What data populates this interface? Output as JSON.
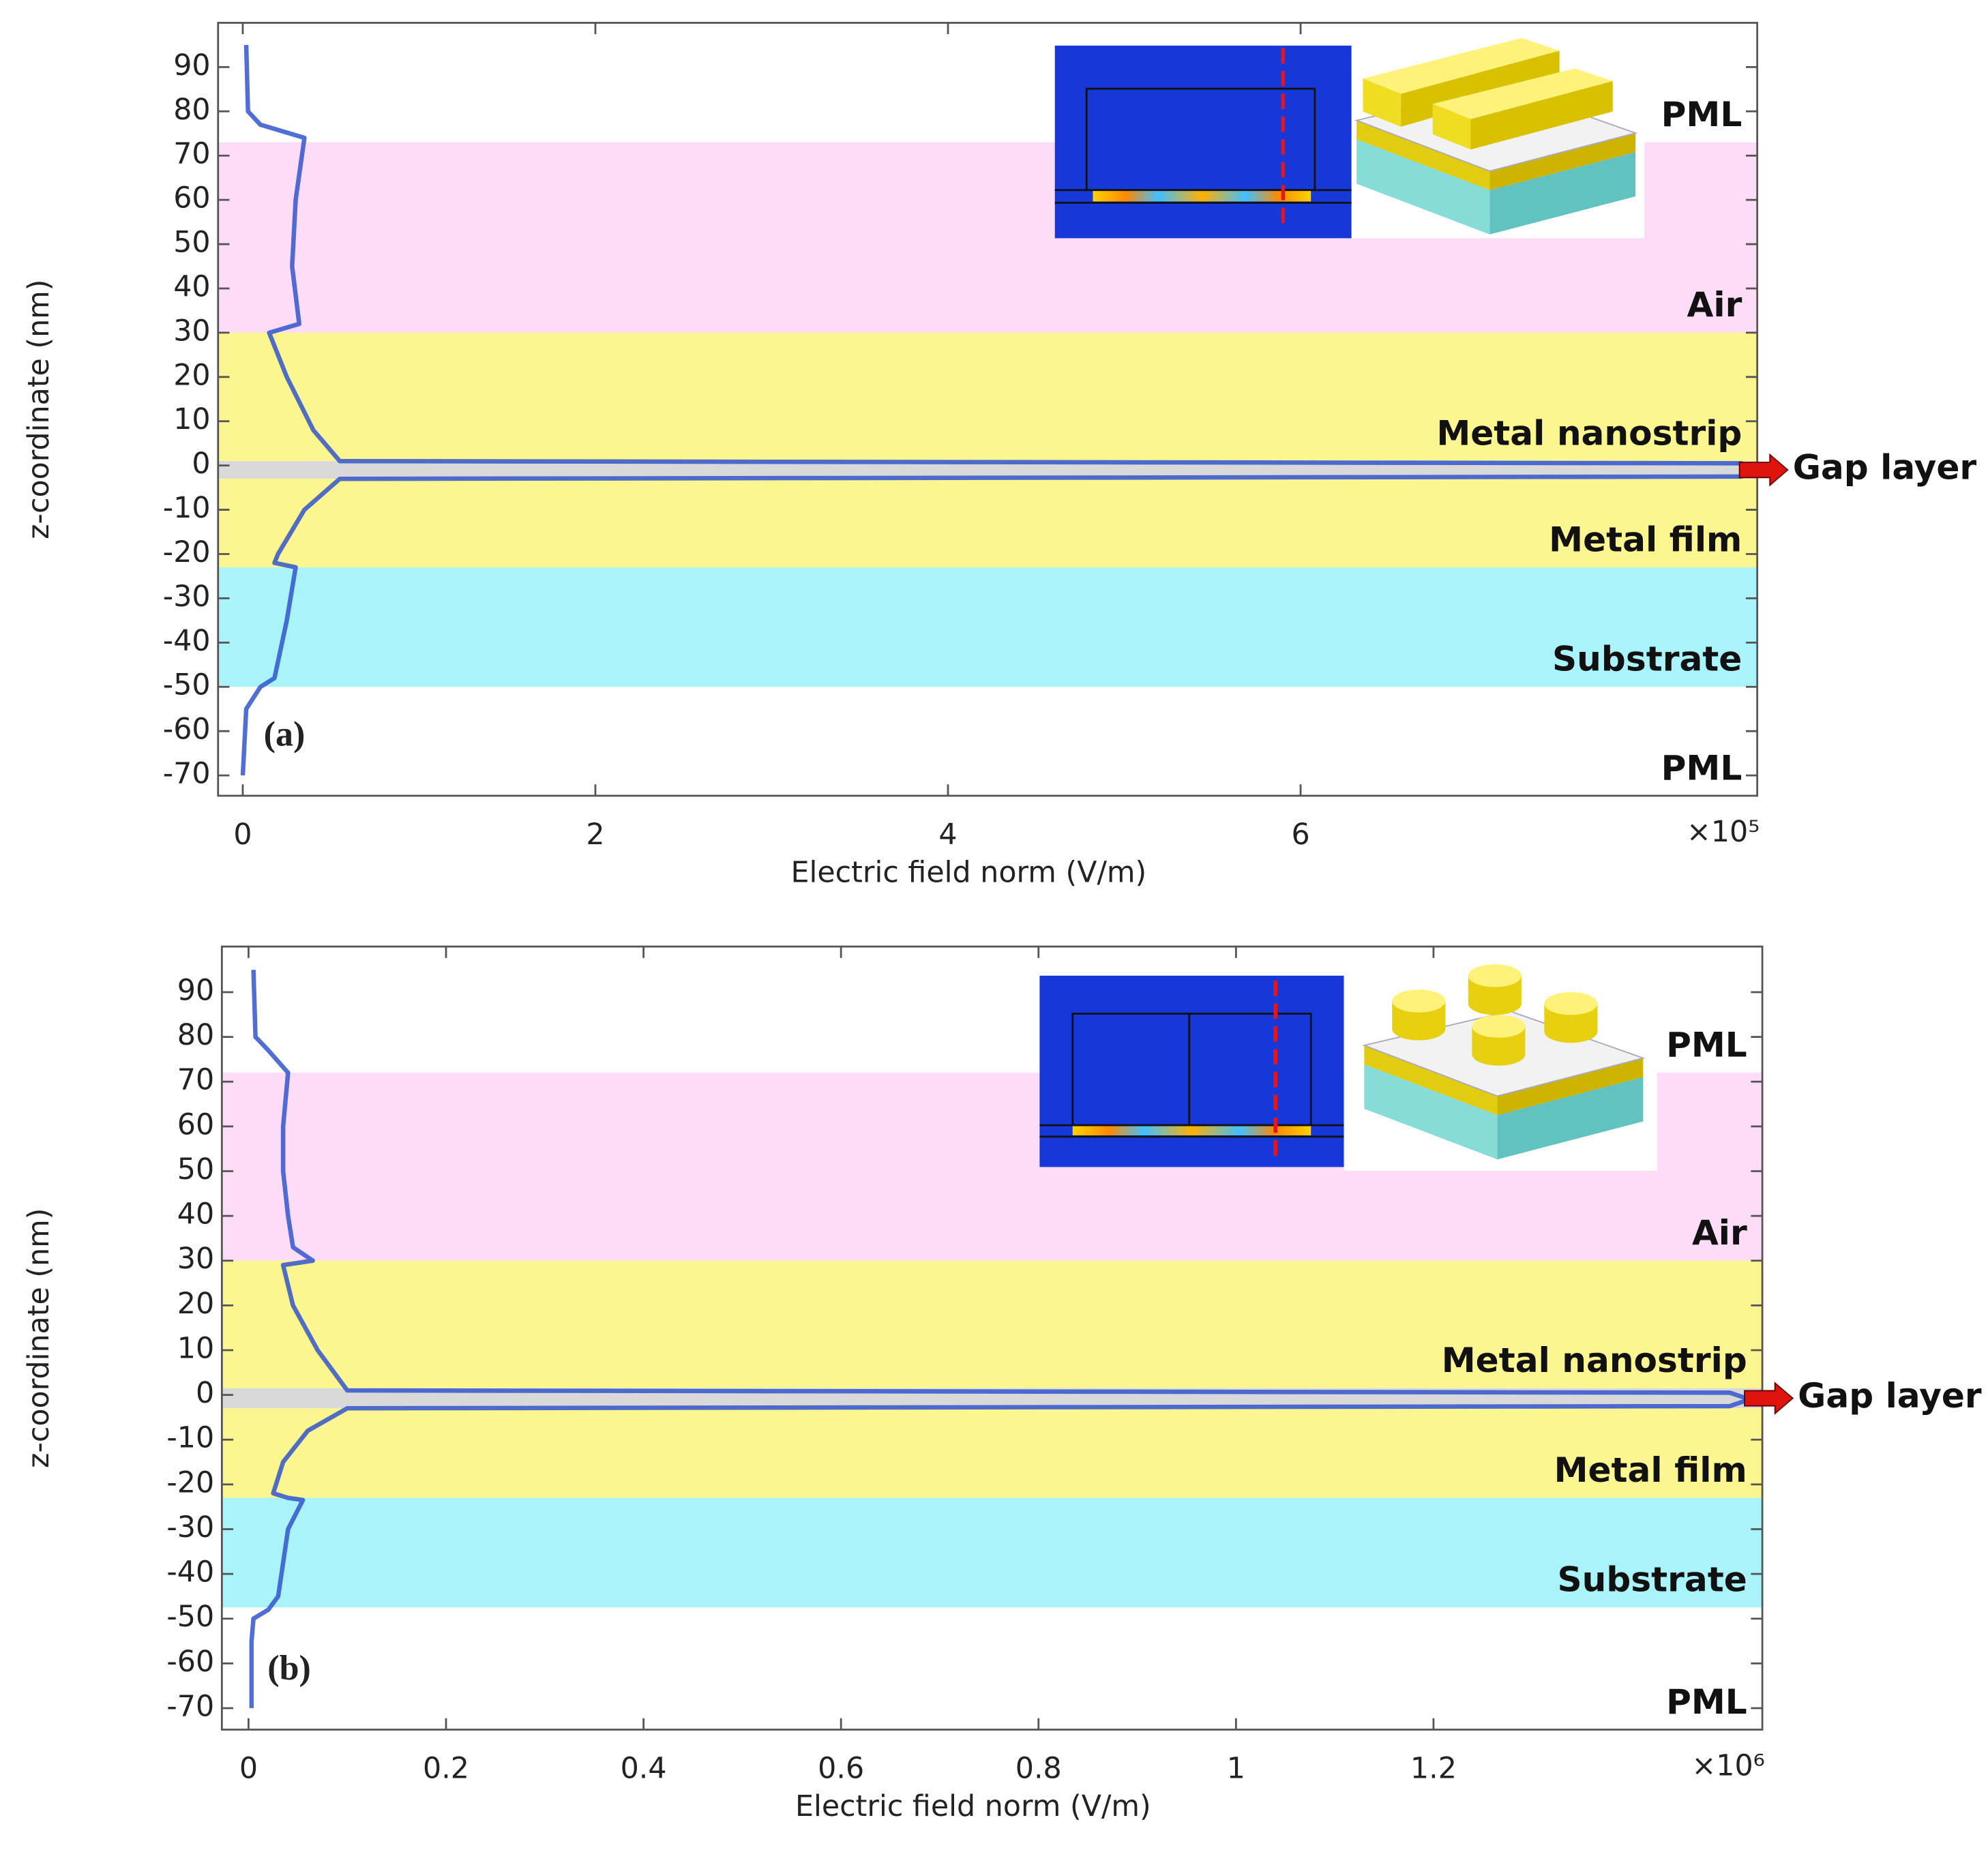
{
  "chart_data": [
    {
      "type": "line",
      "panel_label": "(a)",
      "x_label": "Electric field norm (V/m)",
      "y_label": "z-coordinate (nm)",
      "x_multiplier": "×10⁵",
      "color": "#3355cc",
      "x": [
        0.02,
        0.03,
        0.1,
        0.35,
        0.3,
        0.28,
        0.32,
        0.15,
        0.25,
        0.4,
        0.55,
        8.5,
        8.55,
        8.5,
        0.55,
        0.35,
        0.2,
        0.18,
        0.3,
        0.25,
        0.18,
        0.1,
        0.02,
        0
      ],
      "values": [
        95,
        80,
        77,
        74,
        60,
        45,
        32,
        30,
        20,
        8,
        1,
        0.5,
        -1,
        -2.5,
        -3,
        -10,
        -20,
        -22,
        -23,
        -35,
        -48,
        -50,
        -55,
        -70
      ],
      "xlim": [
        -0.14,
        8.59
      ],
      "ylim": [
        -74.6,
        100
      ],
      "xticks": [
        0,
        2,
        4,
        6
      ],
      "yticks": [
        90,
        80,
        70,
        60,
        50,
        40,
        30,
        20,
        10,
        0,
        -10,
        -20,
        -30,
        -40,
        -50,
        -60,
        -70
      ],
      "layers": [
        {
          "label": "PML",
          "color": "#ffffff",
          "zmin": 73,
          "zmax": 100
        },
        {
          "label": "Air",
          "color": "#fcdcf6",
          "zmin": 30,
          "zmax": 73
        },
        {
          "label": "Metal nanostrip",
          "color": "#fbf68f",
          "zmin": 1,
          "zmax": 30
        },
        {
          "label": "Gap layer",
          "color": "#d9d9d9",
          "zmin": -3,
          "zmax": 1
        },
        {
          "label": "Metal film",
          "color": "#fbf68f",
          "zmin": -23,
          "zmax": -3
        },
        {
          "label": "Substrate",
          "color": "#a9f3fb",
          "zmin": -50,
          "zmax": -23
        },
        {
          "label": "PML",
          "color": "#ffffff",
          "zmin": -74.6,
          "zmax": -50
        }
      ]
    },
    {
      "type": "line",
      "panel_label": "(b)",
      "x_label": "Electric field norm (V/m)",
      "y_label": "z-coordinate (nm)",
      "x_multiplier": "×10⁶",
      "color": "#3355cc",
      "x": [
        0.005,
        0.007,
        0.02,
        0.04,
        0.035,
        0.035,
        0.04,
        0.045,
        0.065,
        0.035,
        0.045,
        0.07,
        0.1,
        1.5,
        1.52,
        1.5,
        0.1,
        0.06,
        0.035,
        0.025,
        0.04,
        0.055,
        0.04,
        0.03,
        0.02,
        0.005,
        0.003,
        0.003
      ],
      "values": [
        95,
        80,
        77,
        72,
        60,
        50,
        40,
        33,
        30,
        29,
        20,
        10,
        1,
        0.5,
        -1,
        -2.5,
        -3,
        -8,
        -15,
        -22,
        -23,
        -23.5,
        -30,
        -45,
        -48,
        -50,
        -55,
        -70
      ],
      "xlim": [
        -0.027,
        1.533
      ],
      "ylim": [
        -74.8,
        100.2
      ],
      "xticks": [
        0,
        0.2,
        0.4,
        0.6,
        0.8,
        1,
        1.2
      ],
      "yticks": [
        90,
        80,
        70,
        60,
        50,
        40,
        30,
        20,
        10,
        0,
        -10,
        -20,
        -30,
        -40,
        -50,
        -60,
        -70
      ],
      "layers": [
        {
          "label": "PML",
          "color": "#ffffff",
          "zmin": 72,
          "zmax": 100.2
        },
        {
          "label": "Air",
          "color": "#fcdcf6",
          "zmin": 30,
          "zmax": 72
        },
        {
          "label": "Metal nanostrip",
          "color": "#fbf68f",
          "zmin": 1.5,
          "zmax": 30
        },
        {
          "label": "Gap layer",
          "color": "#d9d9d9",
          "zmin": -3,
          "zmax": 1.5
        },
        {
          "label": "Metal film",
          "color": "#fbf68f",
          "zmin": -23,
          "zmax": -3
        },
        {
          "label": "Substrate",
          "color": "#a9f3fb",
          "zmin": -47.5,
          "zmax": -23
        },
        {
          "label": "PML",
          "color": "#ffffff",
          "zmin": -74.8,
          "zmax": -47.5
        }
      ]
    }
  ]
}
